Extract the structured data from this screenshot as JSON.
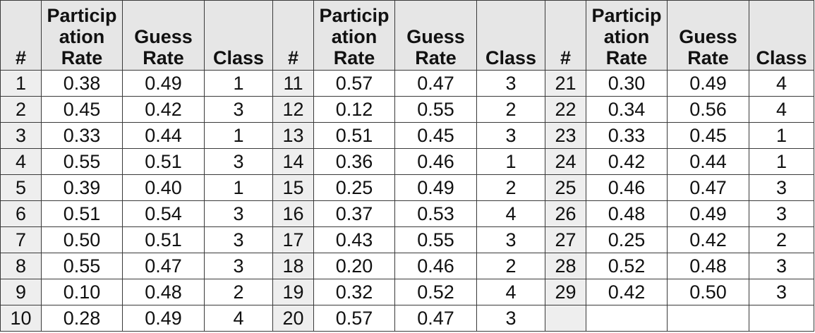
{
  "headers": {
    "index": "#",
    "participation": [
      "Particip",
      "ation",
      "Rate"
    ],
    "guess": [
      "Guess",
      "Rate"
    ],
    "class": "Class"
  },
  "blocks": [
    {
      "rows": [
        {
          "n": "1",
          "p": "0.38",
          "g": "0.49",
          "c": "1"
        },
        {
          "n": "2",
          "p": "0.45",
          "g": "0.42",
          "c": "3"
        },
        {
          "n": "3",
          "p": "0.33",
          "g": "0.44",
          "c": "1"
        },
        {
          "n": "4",
          "p": "0.55",
          "g": "0.51",
          "c": "3"
        },
        {
          "n": "5",
          "p": "0.39",
          "g": "0.40",
          "c": "1"
        },
        {
          "n": "6",
          "p": "0.51",
          "g": "0.54",
          "c": "3"
        },
        {
          "n": "7",
          "p": "0.50",
          "g": "0.51",
          "c": "3"
        },
        {
          "n": "8",
          "p": "0.55",
          "g": "0.47",
          "c": "3"
        },
        {
          "n": "9",
          "p": "0.10",
          "g": "0.48",
          "c": "2"
        },
        {
          "n": "10",
          "p": "0.28",
          "g": "0.49",
          "c": "4"
        }
      ]
    },
    {
      "rows": [
        {
          "n": "11",
          "p": "0.57",
          "g": "0.47",
          "c": "3"
        },
        {
          "n": "12",
          "p": "0.12",
          "g": "0.55",
          "c": "2"
        },
        {
          "n": "13",
          "p": "0.51",
          "g": "0.45",
          "c": "3"
        },
        {
          "n": "14",
          "p": "0.36",
          "g": "0.46",
          "c": "1"
        },
        {
          "n": "15",
          "p": "0.25",
          "g": "0.49",
          "c": "2"
        },
        {
          "n": "16",
          "p": "0.37",
          "g": "0.53",
          "c": "4"
        },
        {
          "n": "17",
          "p": "0.43",
          "g": "0.55",
          "c": "3"
        },
        {
          "n": "18",
          "p": "0.20",
          "g": "0.46",
          "c": "2"
        },
        {
          "n": "19",
          "p": "0.32",
          "g": "0.52",
          "c": "4"
        },
        {
          "n": "20",
          "p": "0.57",
          "g": "0.47",
          "c": "3"
        }
      ]
    },
    {
      "rows": [
        {
          "n": "21",
          "p": "0.30",
          "g": "0.49",
          "c": "4"
        },
        {
          "n": "22",
          "p": "0.34",
          "g": "0.56",
          "c": "4"
        },
        {
          "n": "23",
          "p": "0.33",
          "g": "0.45",
          "c": "1"
        },
        {
          "n": "24",
          "p": "0.42",
          "g": "0.44",
          "c": "1"
        },
        {
          "n": "25",
          "p": "0.46",
          "g": "0.47",
          "c": "3"
        },
        {
          "n": "26",
          "p": "0.48",
          "g": "0.49",
          "c": "3"
        },
        {
          "n": "27",
          "p": "0.25",
          "g": "0.42",
          "c": "2"
        },
        {
          "n": "28",
          "p": "0.52",
          "g": "0.48",
          "c": "3"
        },
        {
          "n": "29",
          "p": "0.42",
          "g": "0.50",
          "c": "3"
        },
        {
          "n": "",
          "p": "",
          "g": "",
          "c": ""
        }
      ]
    }
  ]
}
